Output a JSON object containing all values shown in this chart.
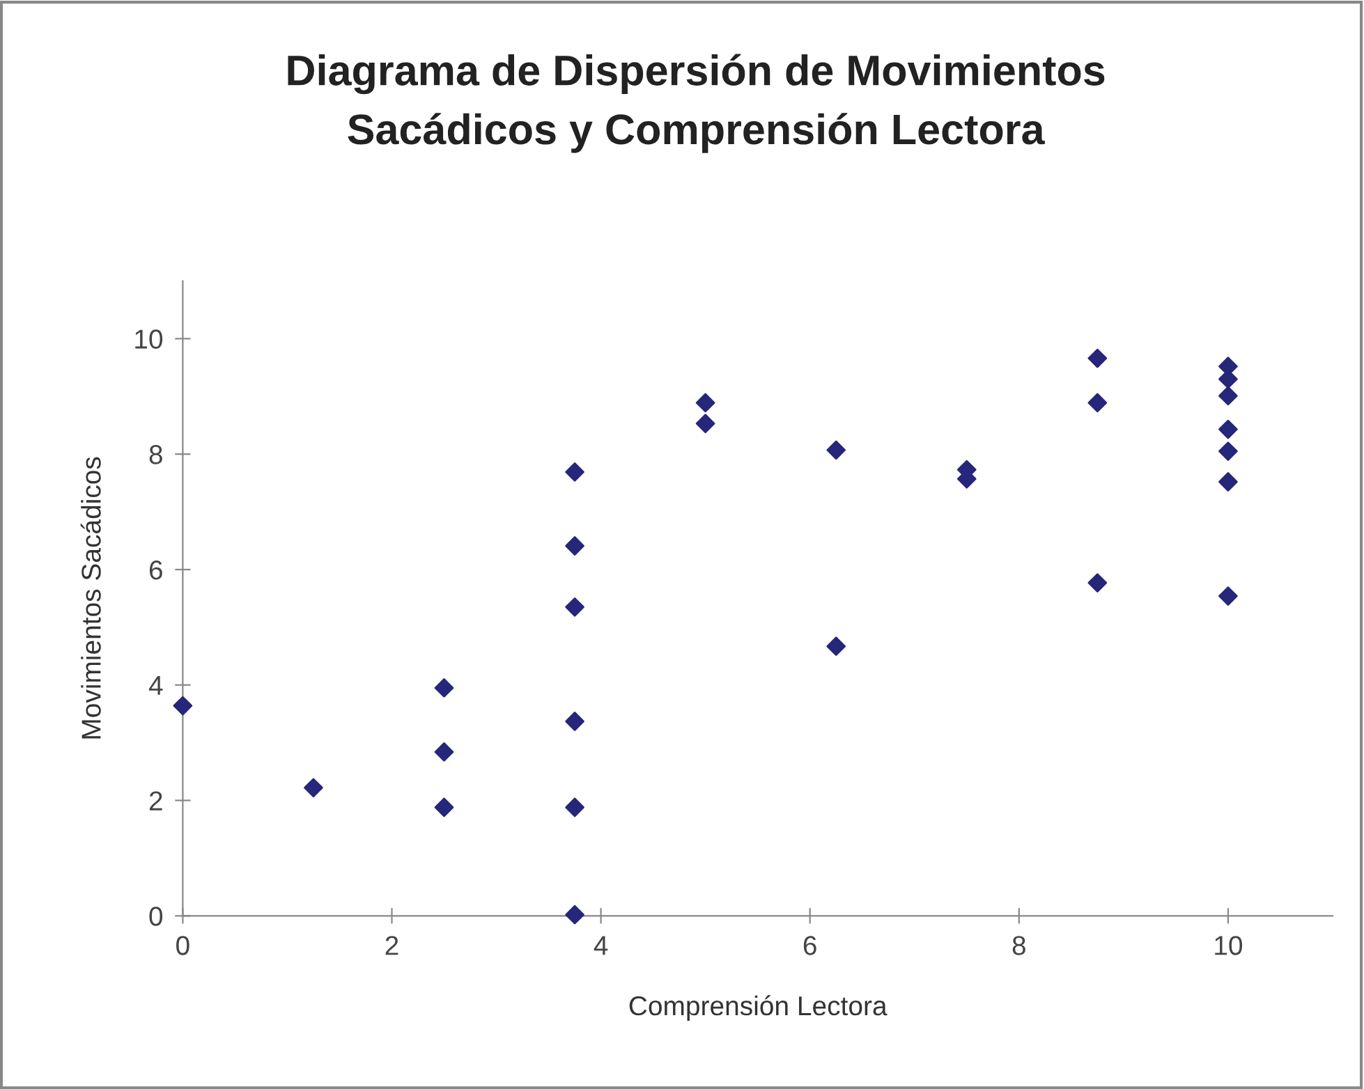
{
  "chart_data": {
    "type": "scatter",
    "title": "Diagrama de Dispersión de Movimientos\nSacádicos y Comprensión Lectora",
    "xlabel": "Comprensión Lectora",
    "ylabel": "Movimientos Sacádicos",
    "series": [
      {
        "color": "#26267a",
        "x": [
          0,
          1.25,
          2.5,
          2.5,
          2.5,
          3.75,
          3.75,
          3.75,
          3.75,
          3.75,
          3.75,
          5,
          5,
          6.25,
          6.25,
          7.5,
          7.5,
          8.75,
          8.75,
          8.75,
          10,
          10,
          10,
          10,
          10,
          10,
          10
        ],
        "values": [
          3.64,
          2.22,
          3.95,
          2.84,
          1.88,
          7.69,
          6.41,
          5.35,
          3.37,
          1.88,
          0.02,
          8.89,
          8.53,
          8.07,
          4.67,
          7.73,
          7.57,
          9.66,
          8.89,
          5.77,
          9.52,
          9.3,
          9.01,
          8.43,
          8.05,
          7.52,
          5.54
        ]
      }
    ],
    "xlim": [
      0,
      11
    ],
    "ylim": [
      0,
      11
    ],
    "xticks": [
      0,
      2,
      4,
      6,
      8,
      10
    ],
    "yticks": [
      0,
      2,
      4,
      6,
      8,
      10
    ],
    "marker": "diamond",
    "grid": false,
    "legend": false
  }
}
